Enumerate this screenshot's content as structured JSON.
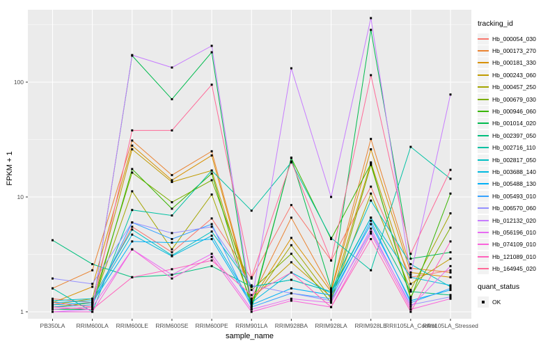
{
  "chart_data": {
    "type": "line",
    "title": "",
    "xlabel": "sample_name",
    "ylabel": "FPKM + 1",
    "y_scale": "log10",
    "y_ticks": [
      1,
      10,
      100
    ],
    "y_minor_ticks": [
      3.162,
      31.62,
      316.2
    ],
    "ylim": [
      0.87,
      430
    ],
    "grid": "major+minor, white on grey panel",
    "panel_bg": "#EBEBEB",
    "grid_color": "#FFFFFF",
    "tick_label_color": "#4D4D4D",
    "marker": "black-square",
    "categories": [
      "PB350LA",
      "RRIM600LA",
      "RRIM600LE",
      "RRIM600SE",
      "RRIM600PE",
      "RRIM901LA",
      "RRIM928BA",
      "RRIM928LA",
      "RRIM928LE",
      "RRII105LA_Control",
      "RRII105LA_Stressed"
    ],
    "series": [
      {
        "name": "Hb_000054_030",
        "color": "#F8766D",
        "values": [
          1.3,
          1.2,
          5.5,
          3.3,
          6.5,
          1.95,
          8.5,
          2.8,
          12.3,
          2.0,
          2.3
        ]
      },
      {
        "name": "Hb_000173_270",
        "color": "#EA8331",
        "values": [
          1.6,
          2.3,
          31,
          15.5,
          25,
          1.3,
          6.6,
          1.55,
          32,
          2.4,
          2.2
        ]
      },
      {
        "name": "Hb_000181_330",
        "color": "#D89000",
        "values": [
          1.2,
          1.65,
          28,
          14.0,
          23,
          1.25,
          4.4,
          1.5,
          26,
          2.2,
          2.0
        ]
      },
      {
        "name": "Hb_000243_060",
        "color": "#C09B00",
        "values": [
          1.15,
          1.3,
          26,
          13.5,
          17,
          1.3,
          2.7,
          1.35,
          20,
          1.75,
          2.9
        ]
      },
      {
        "name": "Hb_000457_250",
        "color": "#A3A500",
        "values": [
          1.1,
          1.15,
          11.2,
          3.5,
          10.5,
          1.2,
          3.8,
          1.3,
          10.7,
          1.55,
          7.2
        ]
      },
      {
        "name": "Hb_000679_030",
        "color": "#7CAE00",
        "values": [
          1.1,
          1.2,
          16.3,
          9.0,
          14,
          1.55,
          3.2,
          1.2,
          19,
          1.35,
          5.4
        ]
      },
      {
        "name": "Hb_000946_060",
        "color": "#39B600",
        "values": [
          1.05,
          1.1,
          17.5,
          7.9,
          16,
          1.1,
          21.8,
          4.3,
          19.5,
          1.3,
          10.7
        ]
      },
      {
        "name": "Hb_001014_020",
        "color": "#00BB4E",
        "values": [
          1.05,
          1.05,
          170,
          71,
          182,
          1.05,
          22.0,
          1.6,
          285,
          2.9,
          3.3
        ]
      },
      {
        "name": "Hb_002397_050",
        "color": "#00BF7D",
        "values": [
          4.2,
          2.6,
          2.0,
          2.1,
          2.5,
          1.65,
          1.9,
          1.5,
          6.6,
          1.5,
          1.4
        ]
      },
      {
        "name": "Hb_002716_110",
        "color": "#00C1A3",
        "values": [
          1.6,
          1.0,
          7.7,
          6.9,
          17,
          7.6,
          20.0,
          4.4,
          2.3,
          27.3,
          14.4
        ]
      },
      {
        "name": "Hb_002817_050",
        "color": "#00BFC4",
        "values": [
          1.25,
          1.3,
          5.2,
          3.1,
          5.0,
          1.65,
          1.9,
          1.5,
          9.3,
          2.6,
          1.65
        ]
      },
      {
        "name": "Hb_003688_140",
        "color": "#00BAE0",
        "values": [
          1.2,
          1.25,
          4.7,
          3.05,
          4.6,
          1.2,
          2.2,
          1.45,
          6.6,
          2.0,
          1.7
        ]
      },
      {
        "name": "Hb_005488_130",
        "color": "#00B0F6",
        "values": [
          1.15,
          1.2,
          4.1,
          4.0,
          4.3,
          1.15,
          1.6,
          1.4,
          5.8,
          1.25,
          1.55
        ]
      },
      {
        "name": "Hb_005493_010",
        "color": "#35A2FF",
        "values": [
          1.1,
          1.15,
          6.0,
          4.3,
          5.8,
          1.1,
          1.45,
          1.3,
          6.2,
          1.2,
          1.6
        ]
      },
      {
        "name": "Hb_006570_060",
        "color": "#9590FF",
        "values": [
          1.95,
          1.75,
          6.0,
          4.85,
          5.5,
          1.7,
          1.45,
          1.25,
          5.0,
          1.15,
          1.35
        ]
      },
      {
        "name": "Hb_012132_020",
        "color": "#C77CFF",
        "values": [
          1.0,
          1.05,
          172,
          134,
          207,
          1.2,
          132,
          10.0,
          361,
          2.1,
          78.0
        ]
      },
      {
        "name": "Hb_056196_010",
        "color": "#E76BF3",
        "values": [
          1.05,
          1.1,
          3.5,
          2.1,
          3.2,
          1.05,
          1.3,
          1.2,
          5.3,
          1.1,
          2.5
        ]
      },
      {
        "name": "Hb_074109_010",
        "color": "#FA62DB",
        "values": [
          1.0,
          1.0,
          3.5,
          1.95,
          3.0,
          1.0,
          1.25,
          1.1,
          4.8,
          1.05,
          1.3
        ]
      },
      {
        "name": "Hb_121089_010",
        "color": "#FF62BC",
        "values": [
          1.1,
          1.05,
          2.0,
          2.35,
          2.8,
          1.4,
          2.2,
          1.1,
          4.3,
          1.0,
          4.1
        ]
      },
      {
        "name": "Hb_164945_020",
        "color": "#FF6A98",
        "values": [
          1.2,
          1.1,
          38,
          38,
          95,
          2.0,
          20.4,
          2.8,
          115,
          3.2,
          17.2
        ]
      }
    ],
    "legend": {
      "color_title": "tracking_id",
      "shape_title": "quant_status",
      "shape_items": [
        {
          "label": "OK",
          "marker": "black-square"
        }
      ],
      "position": "right"
    }
  }
}
